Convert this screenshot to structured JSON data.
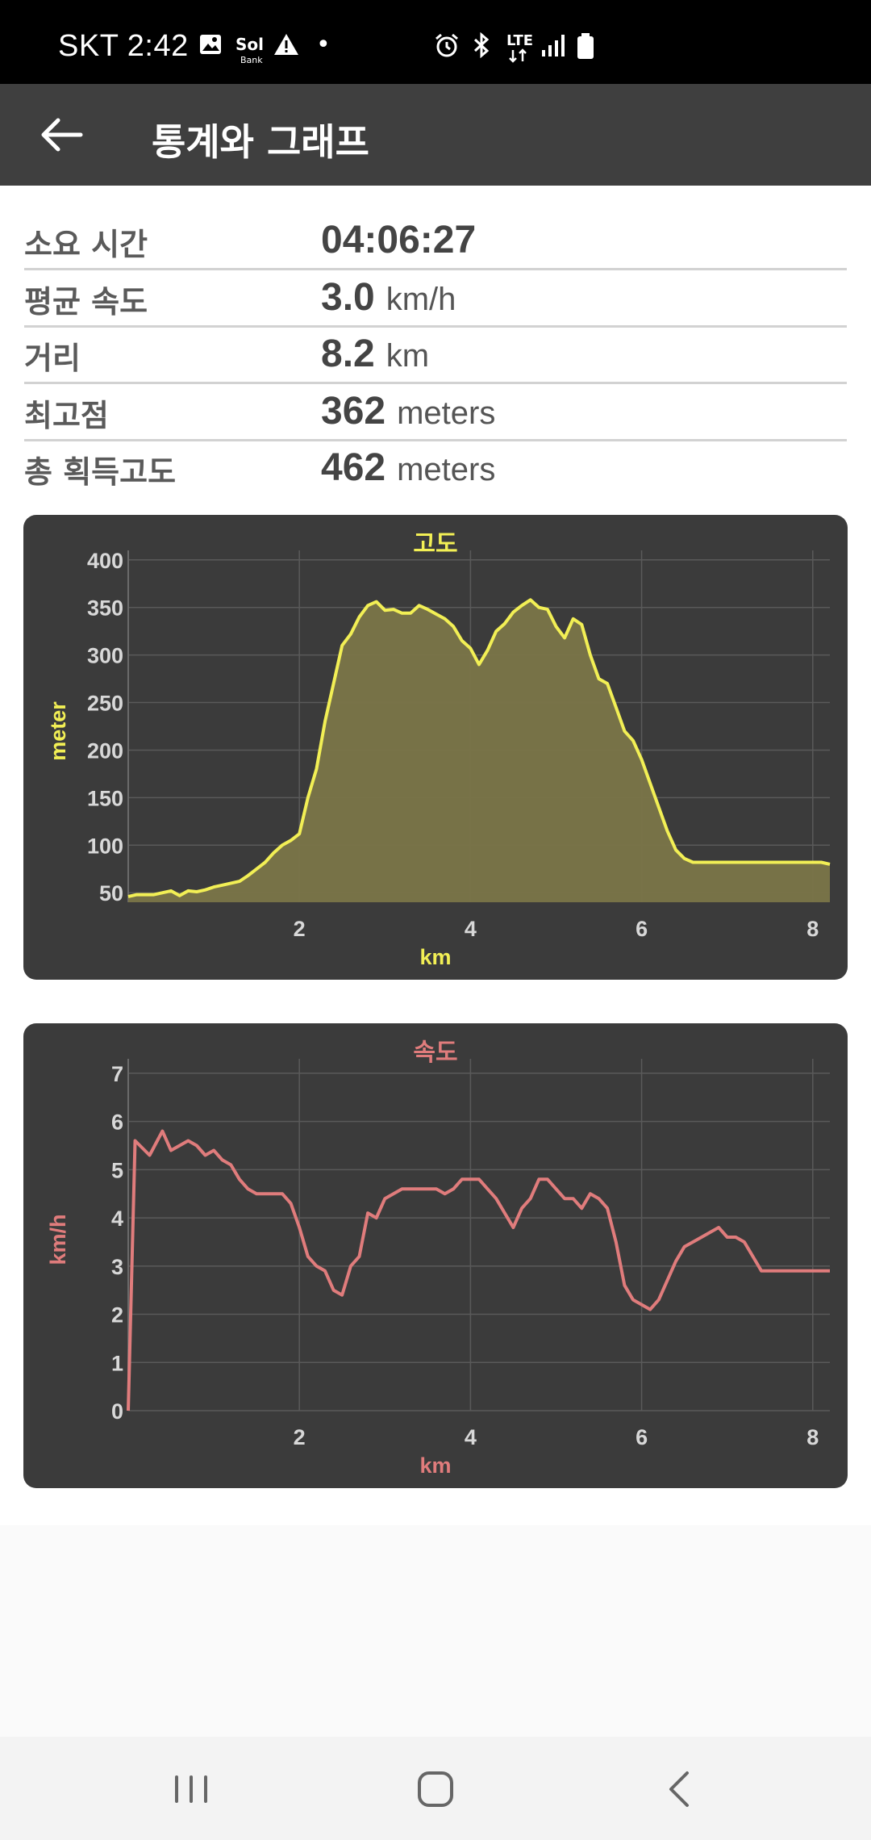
{
  "status_bar": {
    "carrier_time": "SKT 2:42",
    "dot": "•",
    "lte": "LTE"
  },
  "app_bar": {
    "title": "통계와 그래프"
  },
  "stats": [
    {
      "label": "소요 시간",
      "value": "04:06:27",
      "unit": ""
    },
    {
      "label": "평균 속도",
      "value": "3.0",
      "unit": "km/h"
    },
    {
      "label": "거리",
      "value": "8.2",
      "unit": "km"
    },
    {
      "label": "최고점",
      "value": "362",
      "unit": "meters"
    },
    {
      "label": "총 획득고도",
      "value": "462",
      "unit": "meters"
    }
  ],
  "chart_data": [
    {
      "type": "area",
      "title": "고도",
      "xlabel": "km",
      "ylabel": "meter",
      "xlim": [
        0,
        8.2
      ],
      "ylim": [
        40,
        410
      ],
      "x_ticks": [
        2,
        4,
        6,
        8
      ],
      "y_ticks": [
        50,
        100,
        150,
        200,
        250,
        300,
        350,
        400
      ],
      "grid": true,
      "color": "#f2ef55",
      "fill": "#7a7548",
      "x": [
        0,
        0.1,
        0.3,
        0.5,
        0.6,
        0.7,
        0.8,
        0.9,
        1.0,
        1.1,
        1.3,
        1.4,
        1.5,
        1.6,
        1.7,
        1.8,
        1.9,
        2.0,
        2.1,
        2.2,
        2.3,
        2.4,
        2.5,
        2.6,
        2.7,
        2.8,
        2.9,
        3.0,
        3.1,
        3.2,
        3.3,
        3.4,
        3.5,
        3.6,
        3.7,
        3.8,
        3.9,
        4.0,
        4.1,
        4.2,
        4.3,
        4.4,
        4.5,
        4.6,
        4.7,
        4.8,
        4.9,
        5.0,
        5.1,
        5.2,
        5.3,
        5.4,
        5.5,
        5.6,
        5.7,
        5.8,
        5.9,
        6.0,
        6.1,
        6.2,
        6.3,
        6.4,
        6.5,
        6.6,
        6.7,
        6.8,
        6.9,
        7.0,
        7.1,
        7.2,
        7.3,
        7.4,
        7.5,
        7.6,
        7.7,
        7.8,
        7.9,
        8.0,
        8.1,
        8.2
      ],
      "y": [
        46,
        48,
        48,
        52,
        47,
        52,
        51,
        53,
        56,
        58,
        62,
        68,
        75,
        82,
        92,
        100,
        105,
        112,
        150,
        180,
        230,
        270,
        310,
        322,
        340,
        352,
        356,
        347,
        348,
        344,
        344,
        352,
        348,
        343,
        338,
        330,
        315,
        307,
        290,
        305,
        325,
        333,
        345,
        352,
        358,
        350,
        348,
        330,
        318,
        338,
        332,
        300,
        275,
        270,
        245,
        220,
        210,
        190,
        165,
        140,
        115,
        95,
        86,
        82,
        82,
        82,
        82,
        82,
        82,
        82,
        82,
        82,
        82,
        82,
        82,
        82,
        82,
        82,
        82,
        80
      ]
    },
    {
      "type": "line",
      "title": "속도",
      "xlabel": "km",
      "ylabel": "km/h",
      "xlim": [
        0,
        8.2
      ],
      "ylim": [
        0,
        7.3
      ],
      "x_ticks": [
        2,
        4,
        6,
        8
      ],
      "y_ticks": [
        0,
        1,
        2,
        3,
        4,
        5,
        6,
        7
      ],
      "grid": true,
      "color": "#e07c7c",
      "x": [
        0,
        0.08,
        0.25,
        0.4,
        0.5,
        0.6,
        0.7,
        0.8,
        0.9,
        1.0,
        1.1,
        1.2,
        1.3,
        1.4,
        1.5,
        1.6,
        1.8,
        1.9,
        2.0,
        2.1,
        2.2,
        2.3,
        2.4,
        2.5,
        2.6,
        2.7,
        2.8,
        2.9,
        3.0,
        3.1,
        3.2,
        3.3,
        3.4,
        3.5,
        3.6,
        3.7,
        3.8,
        3.9,
        4.0,
        4.1,
        4.2,
        4.3,
        4.4,
        4.5,
        4.6,
        4.7,
        4.8,
        4.9,
        5.0,
        5.1,
        5.2,
        5.3,
        5.4,
        5.5,
        5.6,
        5.7,
        5.8,
        5.9,
        6.0,
        6.1,
        6.2,
        6.3,
        6.4,
        6.5,
        6.6,
        6.7,
        6.8,
        6.9,
        7.0,
        7.1,
        7.2,
        7.3,
        7.4,
        7.5,
        7.6,
        7.7,
        7.8,
        7.9,
        8.0,
        8.1,
        8.2
      ],
      "y": [
        0,
        5.6,
        5.3,
        5.8,
        5.4,
        5.5,
        5.6,
        5.5,
        5.3,
        5.4,
        5.2,
        5.1,
        4.8,
        4.6,
        4.5,
        4.5,
        4.5,
        4.3,
        3.8,
        3.2,
        3.0,
        2.9,
        2.5,
        2.4,
        3.0,
        3.2,
        4.1,
        4.0,
        4.4,
        4.5,
        4.6,
        4.6,
        4.6,
        4.6,
        4.6,
        4.5,
        4.6,
        4.8,
        4.8,
        4.8,
        4.6,
        4.4,
        4.1,
        3.8,
        4.2,
        4.4,
        4.8,
        4.8,
        4.6,
        4.4,
        4.4,
        4.2,
        4.5,
        4.4,
        4.2,
        3.5,
        2.6,
        2.3,
        2.2,
        2.1,
        2.3,
        2.7,
        3.1,
        3.4,
        3.5,
        3.6,
        3.7,
        3.8,
        3.6,
        3.6,
        3.5,
        3.2,
        2.9,
        2.9,
        2.9,
        2.9,
        2.9,
        2.9,
        2.9,
        2.9,
        2.9
      ]
    }
  ],
  "nav": {
    "recents": "recents",
    "home": "home",
    "back": "back"
  }
}
